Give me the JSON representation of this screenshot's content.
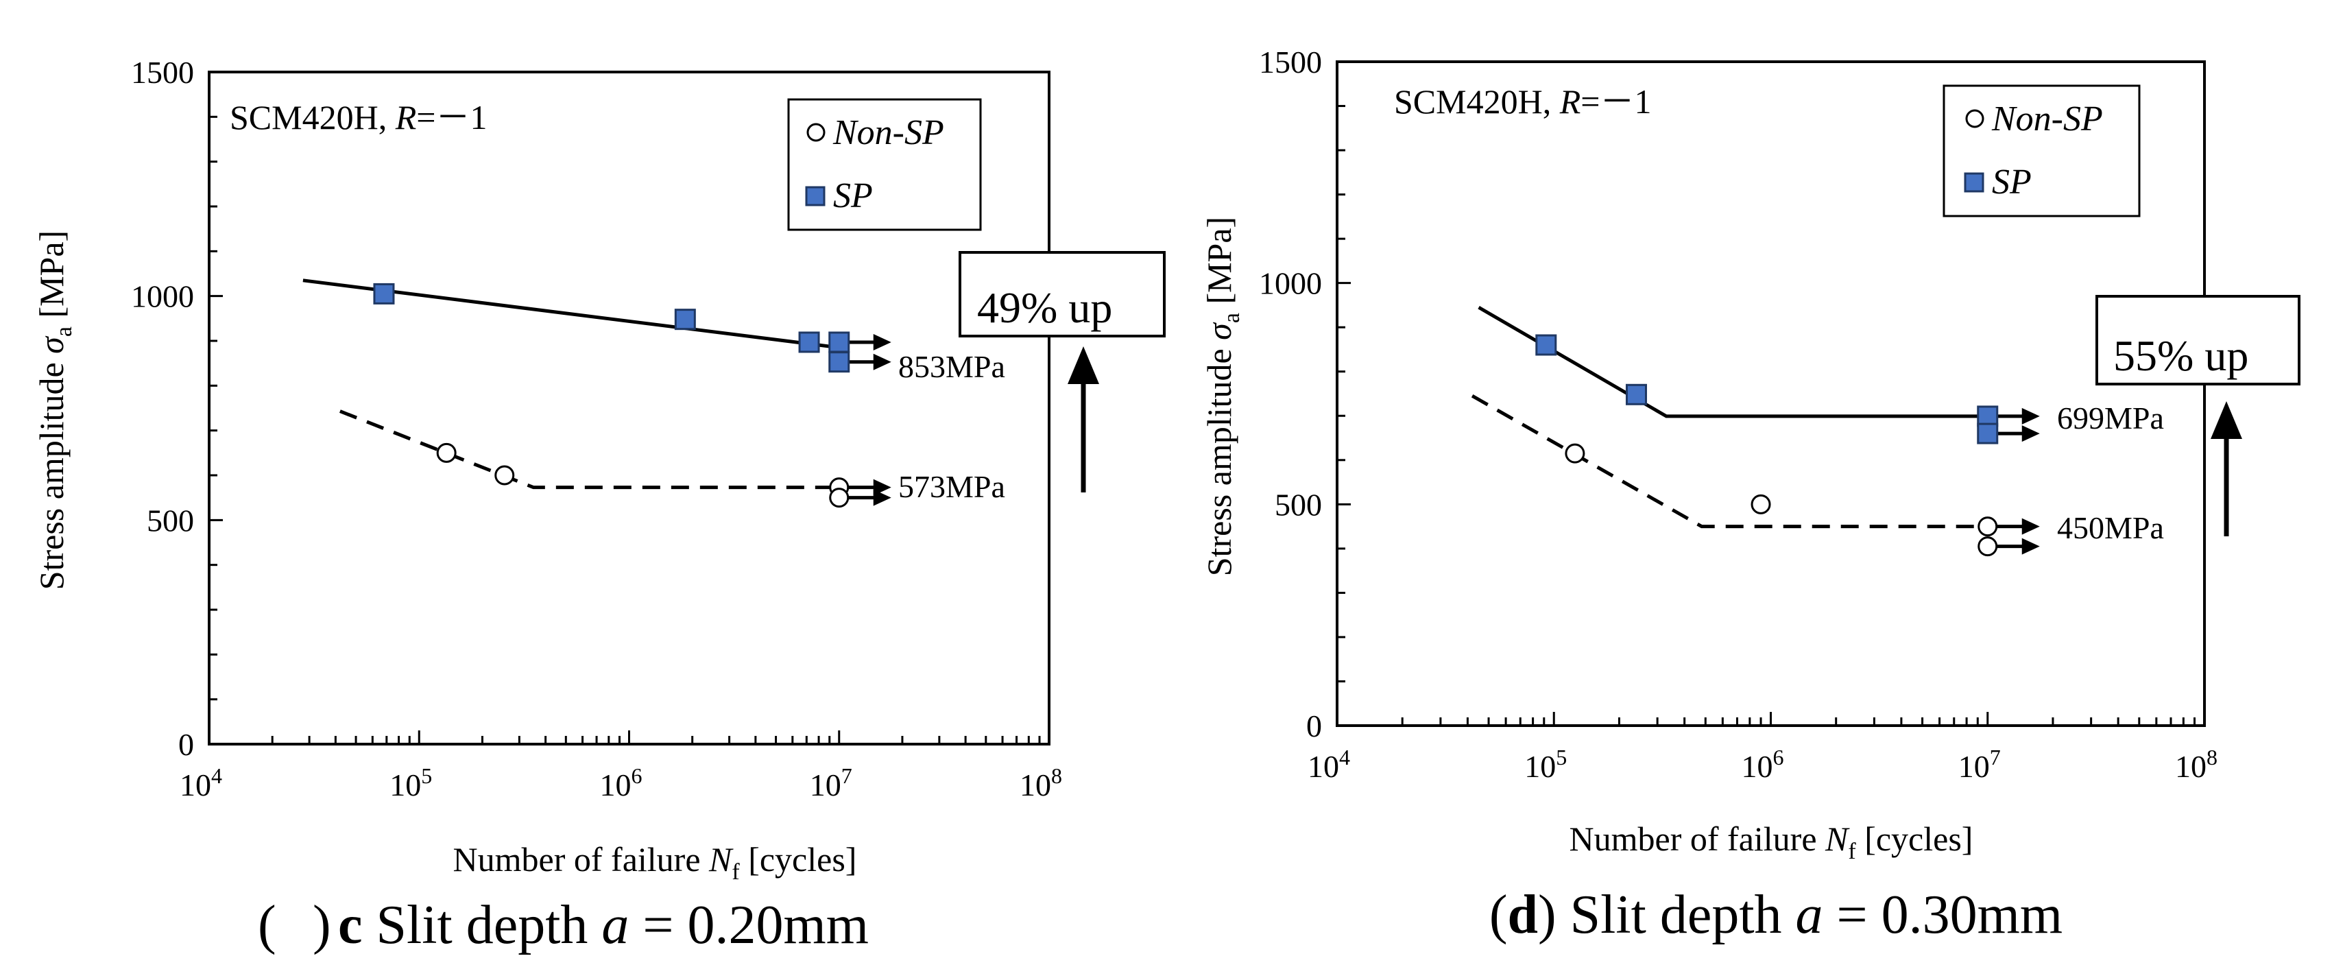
{
  "figure": {
    "panels": [
      {
        "id": "c",
        "caption_letter": "c",
        "caption_text": "Slit depth",
        "caption_var": "a",
        "caption_value": " = 0.20mm",
        "material": "SCM420H, ",
        "ratio_var": "R",
        "ratio_value": "=－1",
        "xlabel_prefix": "Number of failure ",
        "xlabel_var": "N",
        "xlabel_sub": "f",
        "xlabel_suffix": " [cycles]",
        "ylabel_prefix": "Stress amplitude ",
        "ylabel_var": "σ",
        "ylabel_sub": "a",
        "ylabel_suffix": " [MPa]",
        "y_ticks": [
          "0",
          "500",
          "1000",
          "1500"
        ],
        "x_tick_base": "10",
        "x_tick_exps": [
          "4",
          "5",
          "6",
          "7",
          "8"
        ],
        "legend": [
          "Non-SP",
          "SP"
        ],
        "labels": {
          "sp_limit": "853MPa",
          "nonsp_limit": "573MPa"
        },
        "callout": "49%  up"
      },
      {
        "id": "d",
        "caption_letter": "d",
        "caption_text": "Slit depth",
        "caption_var": "a",
        "caption_value": " = 0.30mm",
        "material": "SCM420H, ",
        "ratio_var": "R",
        "ratio_value": "=－1",
        "xlabel_prefix": "Number of failure ",
        "xlabel_var": "N",
        "xlabel_sub": "f",
        "xlabel_suffix": " [cycles]",
        "ylabel_prefix": "Stress amplitude ",
        "ylabel_var": "σ",
        "ylabel_sub": "a",
        "ylabel_suffix": " [MPa]",
        "y_ticks": [
          "0",
          "500",
          "1000",
          "1500"
        ],
        "x_tick_base": "10",
        "x_tick_exps": [
          "4",
          "5",
          "6",
          "7",
          "8"
        ],
        "legend": [
          "Non-SP",
          "SP"
        ],
        "labels": {
          "sp_limit": "699MPa",
          "nonsp_limit": "450MPa"
        },
        "callout": "55%  up"
      }
    ]
  },
  "chart_data": [
    {
      "type": "scatter",
      "panel": "c",
      "xscale": "log",
      "xlim": [
        10000,
        100000000
      ],
      "ylim": [
        0,
        1500
      ],
      "legend_position": "top-right",
      "series": [
        {
          "name": "Non-SP",
          "marker": "open-circle",
          "points": [
            [
              135000,
              650
            ],
            [
              255000,
              600
            ],
            [
              10000000,
              573
            ],
            [
              10000000,
              550
            ]
          ],
          "runouts": [
            [
              10000000,
              573
            ],
            [
              10000000,
              550
            ]
          ]
        },
        {
          "name": "SP",
          "marker": "filled-square",
          "color": "#4472C4",
          "points": [
            [
              68000,
              1005
            ],
            [
              1850000,
              948
            ],
            [
              7200000,
              897
            ],
            [
              10000000,
              897
            ],
            [
              10000000,
              853
            ]
          ],
          "runouts": [
            [
              10000000,
              897
            ],
            [
              10000000,
              853
            ]
          ]
        }
      ],
      "fit_lines": [
        {
          "series": "SP",
          "style": "solid",
          "points": [
            [
              28000,
              1035
            ],
            [
              10000000,
              885
            ]
          ]
        },
        {
          "series": "Non-SP",
          "style": "dashed",
          "points": [
            [
              42000,
              743
            ],
            [
              350000,
              573
            ],
            [
              10000000,
              573
            ]
          ]
        }
      ],
      "annotations": {
        "sp_limit": 853,
        "nonsp_limit": 573,
        "increase_percent": 49
      }
    },
    {
      "type": "scatter",
      "panel": "d",
      "xscale": "log",
      "xlim": [
        10000,
        100000000
      ],
      "ylim": [
        0,
        1500
      ],
      "legend_position": "top-right",
      "series": [
        {
          "name": "Non-SP",
          "marker": "open-circle",
          "points": [
            [
              125000,
              615
            ],
            [
              900000,
              500
            ],
            [
              10000000,
              450
            ],
            [
              10000000,
              405
            ]
          ],
          "runouts": [
            [
              10000000,
              450
            ],
            [
              10000000,
              405
            ]
          ]
        },
        {
          "name": "SP",
          "marker": "filled-square",
          "color": "#4472C4",
          "points": [
            [
              92000,
              860
            ],
            [
              240000,
              748
            ],
            [
              10000000,
              699
            ],
            [
              10000000,
              660
            ]
          ],
          "runouts": [
            [
              10000000,
              699
            ],
            [
              10000000,
              660
            ]
          ]
        }
      ],
      "fit_lines": [
        {
          "series": "SP",
          "style": "solid",
          "points": [
            [
              45000,
              945
            ],
            [
              330000,
              699
            ],
            [
              10000000,
              699
            ]
          ]
        },
        {
          "series": "Non-SP",
          "style": "dashed",
          "points": [
            [
              42000,
              745
            ],
            [
              480000,
              450
            ],
            [
              10000000,
              450
            ]
          ]
        }
      ],
      "annotations": {
        "sp_limit": 699,
        "nonsp_limit": 450,
        "increase_percent": 55
      }
    }
  ]
}
